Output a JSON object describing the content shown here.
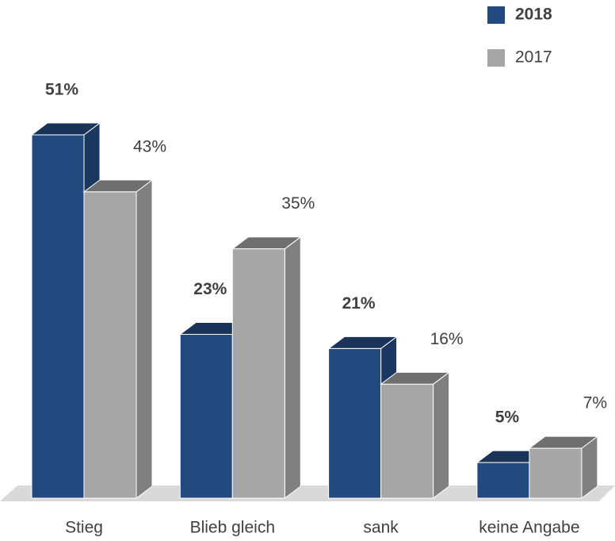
{
  "chart_data": {
    "type": "bar3d",
    "categories": [
      "Stieg",
      "Blieb gleich",
      "sank",
      "keine Angabe"
    ],
    "series": [
      {
        "name": "2018",
        "color": "#234a7e",
        "values": [
          51,
          23,
          21,
          5
        ],
        "value_labels": [
          "51%",
          "23%",
          "21%",
          "5%"
        ]
      },
      {
        "name": "2017",
        "color": "#a6a6a6",
        "values": [
          43,
          35,
          16,
          7
        ],
        "value_labels": [
          "43%",
          "35%",
          "16%",
          "7%"
        ]
      }
    ]
  }
}
